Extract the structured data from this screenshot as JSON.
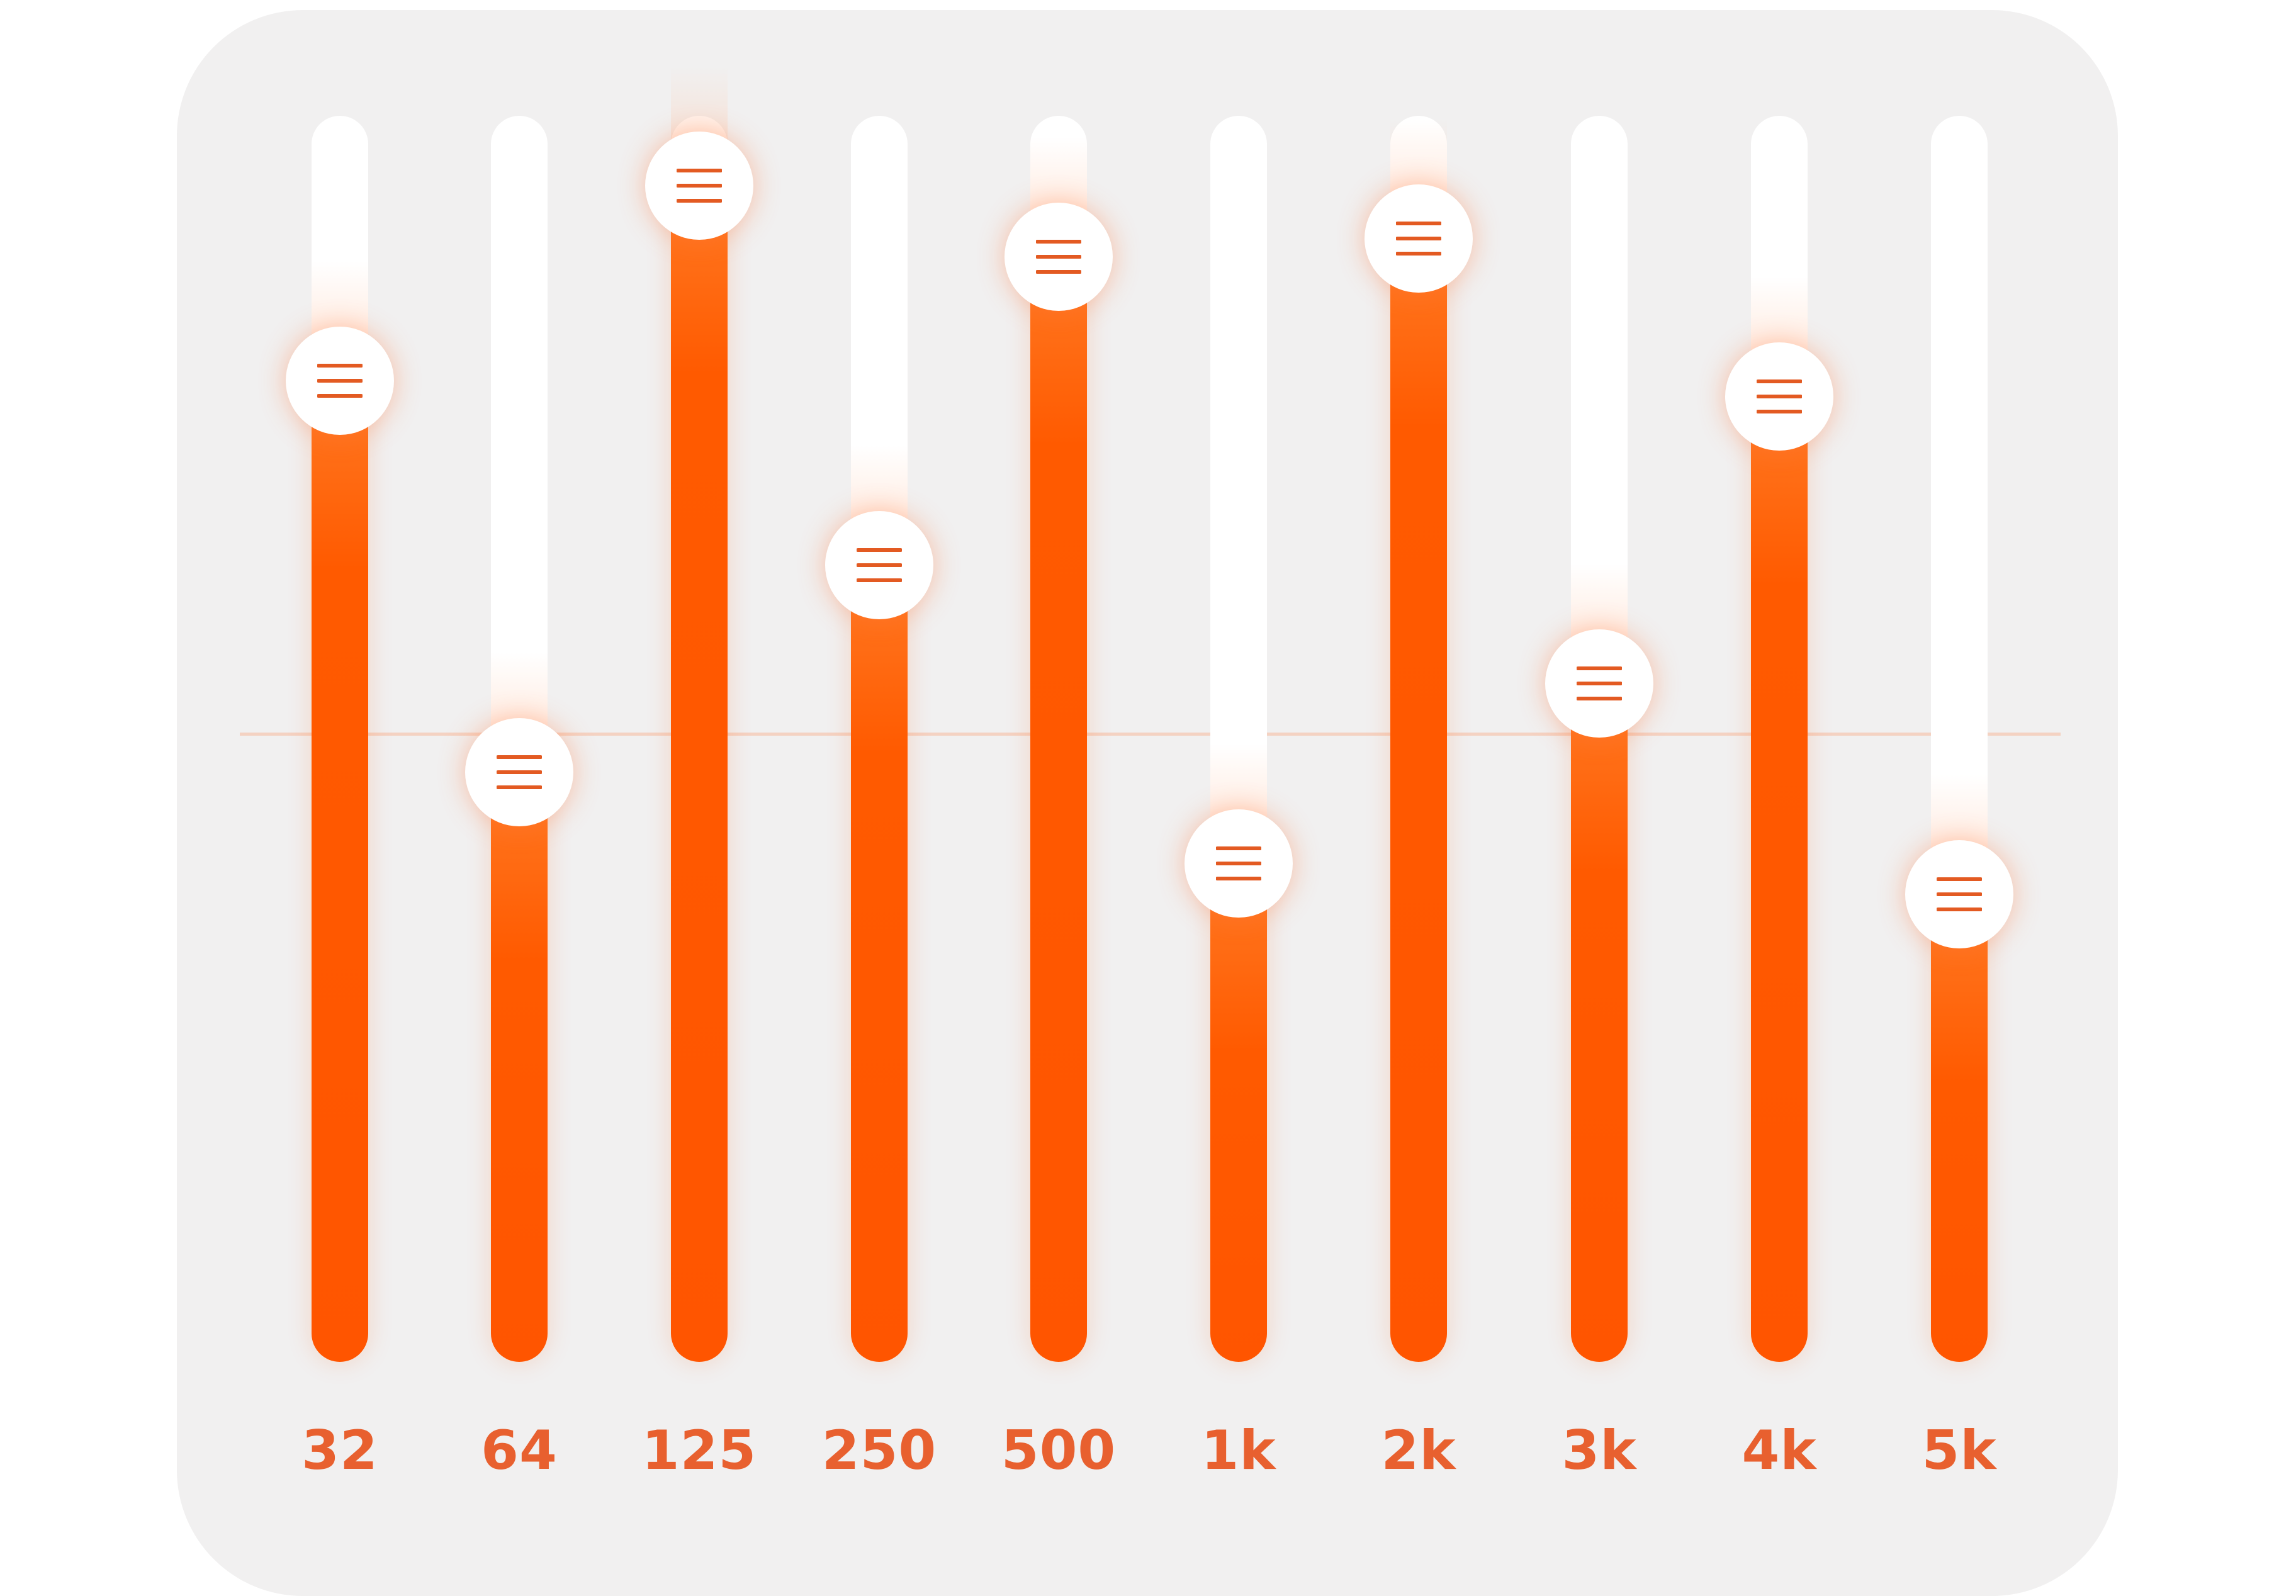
{
  "equalizer": {
    "accent_color": "#ff5a00",
    "track_color": "#ffffff",
    "label_color": "#e8602f",
    "handle_icon": "grip-lines-icon",
    "bands": [
      {
        "label": "32",
        "level": 0.774
      },
      {
        "label": "64",
        "level": 0.426
      },
      {
        "label": "125",
        "level": 0.947
      },
      {
        "label": "250",
        "level": 0.61
      },
      {
        "label": "500",
        "level": 0.884
      },
      {
        "label": "1k",
        "level": 0.345
      },
      {
        "label": "2k",
        "level": 0.9
      },
      {
        "label": "3k",
        "level": 0.505
      },
      {
        "label": "4k",
        "level": 0.76
      },
      {
        "label": "5k",
        "level": 0.318
      }
    ]
  }
}
